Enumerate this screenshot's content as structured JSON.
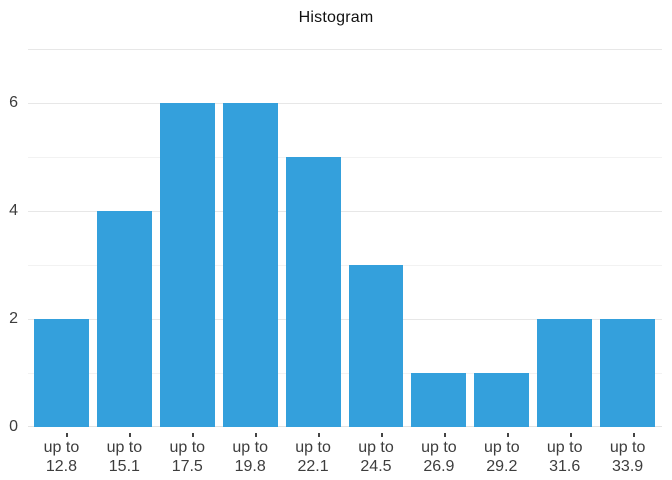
{
  "chart_data": {
    "type": "bar",
    "title": "Histogram",
    "xlabel": "",
    "ylabel": "",
    "categories": [
      {
        "line1": "up to",
        "line2": "12.8"
      },
      {
        "line1": "up to",
        "line2": "15.1"
      },
      {
        "line1": "up to",
        "line2": "17.5"
      },
      {
        "line1": "up to",
        "line2": "19.8"
      },
      {
        "line1": "up to",
        "line2": "22.1"
      },
      {
        "line1": "up to",
        "line2": "24.5"
      },
      {
        "line1": "up to",
        "line2": "26.9"
      },
      {
        "line1": "up to",
        "line2": "29.2"
      },
      {
        "line1": "up to",
        "line2": "31.6"
      },
      {
        "line1": "up to",
        "line2": "33.9"
      }
    ],
    "values": [
      2,
      4,
      6,
      6,
      5,
      3,
      1,
      1,
      2,
      2
    ],
    "ylim": [
      0,
      7
    ],
    "y_ticks": [
      {
        "value": 0,
        "label": "0"
      },
      {
        "value": 2,
        "label": "2"
      },
      {
        "value": 4,
        "label": "4"
      },
      {
        "value": 6,
        "label": "6"
      }
    ],
    "gridlines": {
      "major_values": [
        2,
        4,
        6,
        7
      ],
      "minor_values": [
        1,
        3,
        5
      ]
    },
    "legend_position": "none",
    "colors": {
      "bar": "#34a0dc",
      "grid_major": "#e7e7e7",
      "grid_minor": "#f2f2f2",
      "axis_line": "#e2e2e2",
      "tick_mark": "#444444",
      "axis_label": "#3d3d3d",
      "title": "#111111"
    }
  }
}
